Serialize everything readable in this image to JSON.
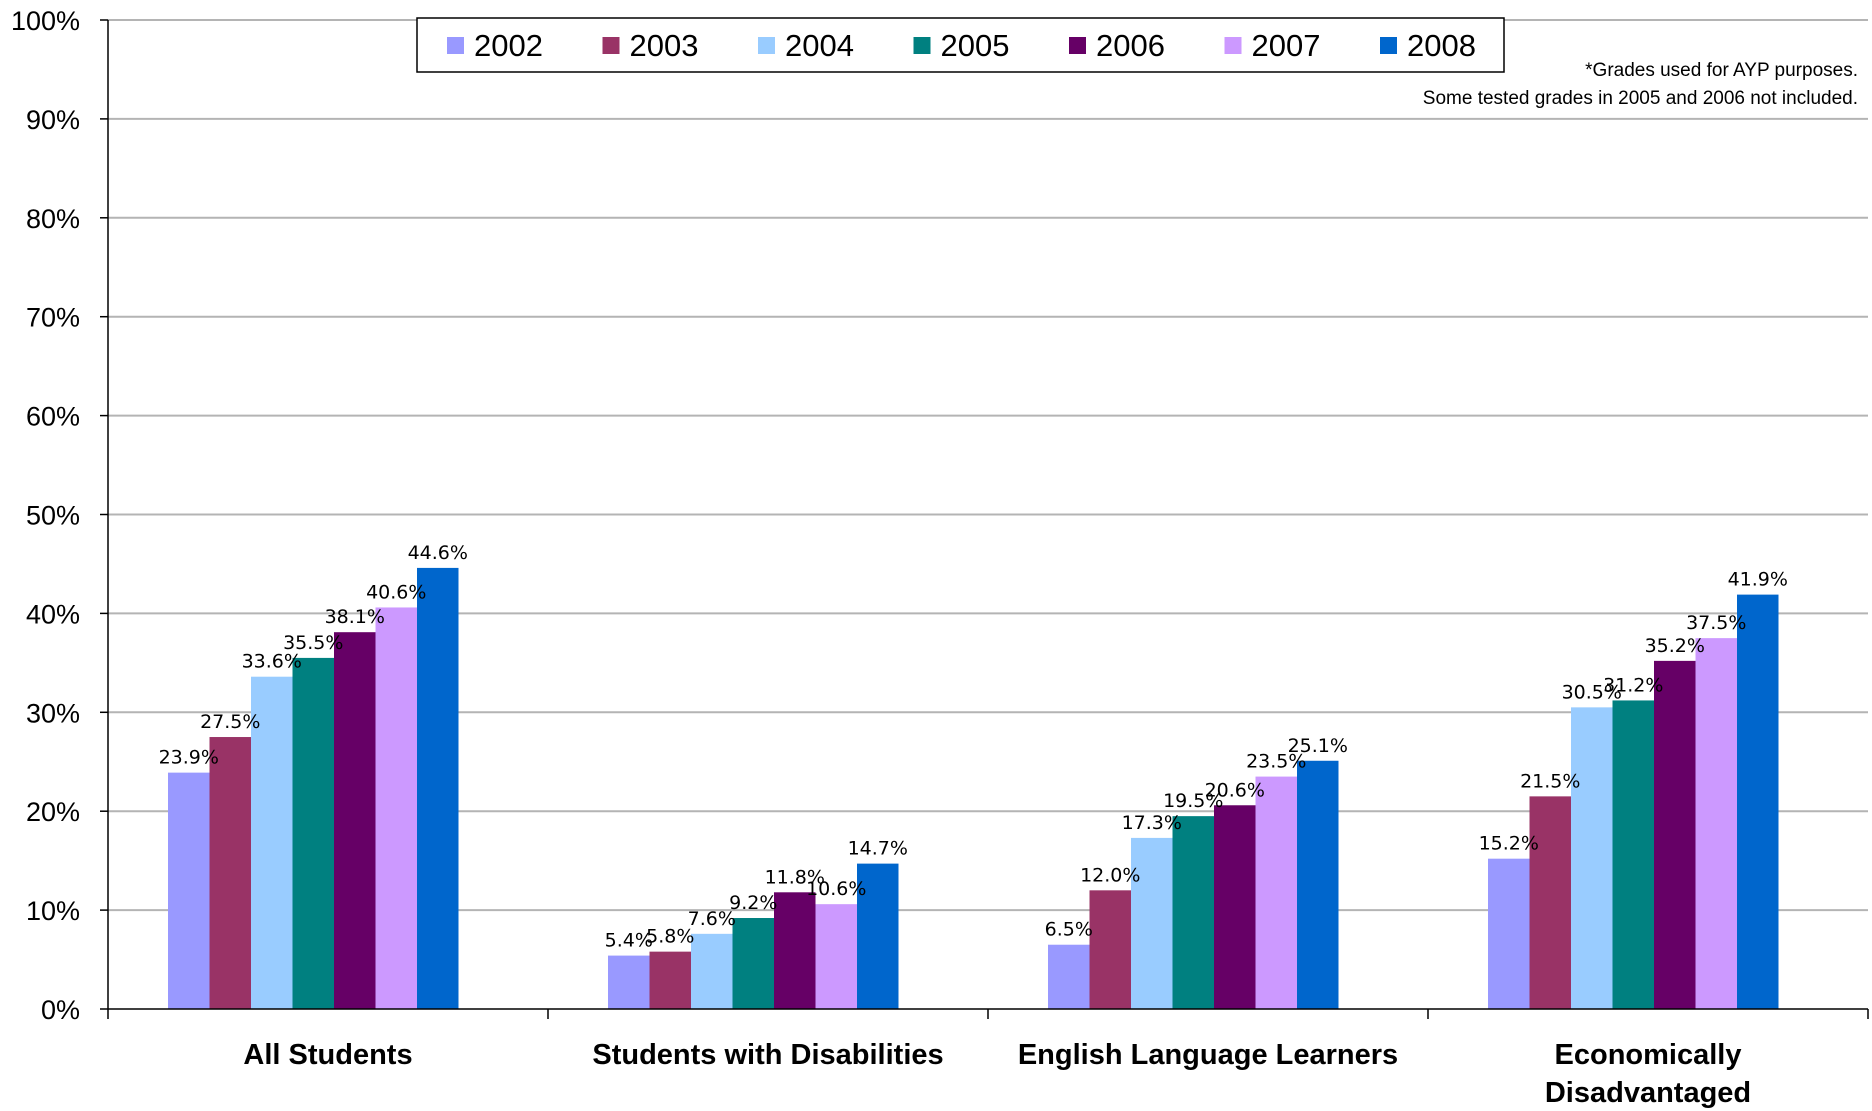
{
  "chart_data": {
    "type": "bar",
    "title": "",
    "xlabel": "",
    "ylabel": "",
    "ylim": [
      0,
      100
    ],
    "y_ticks": [
      "0%",
      "10%",
      "20%",
      "30%",
      "40%",
      "50%",
      "60%",
      "70%",
      "80%",
      "90%",
      "100%"
    ],
    "y_tick_values": [
      0,
      10,
      20,
      30,
      40,
      50,
      60,
      70,
      80,
      90,
      100
    ],
    "grid": true,
    "legend_position": "top-center",
    "categories": [
      [
        "All Students"
      ],
      [
        "Students with Disabilities"
      ],
      [
        "English Language Learners"
      ],
      [
        "Economically",
        "Disadvantaged"
      ]
    ],
    "series": [
      {
        "name": "2002",
        "color": "#9999ff",
        "values": [
          23.9,
          5.4,
          6.5,
          15.2
        ],
        "labels": [
          "23.9%",
          "5.4%",
          "6.5%",
          "15.2%"
        ]
      },
      {
        "name": "2003",
        "color": "#993366",
        "values": [
          27.5,
          5.8,
          12.0,
          21.5
        ],
        "labels": [
          "27.5%",
          "5.8%",
          "12.0%",
          "21.5%"
        ]
      },
      {
        "name": "2004",
        "color": "#99ccff",
        "values": [
          33.6,
          7.6,
          17.3,
          30.5
        ],
        "labels": [
          "33.6%",
          "7.6%",
          "17.3%",
          "30.5%"
        ]
      },
      {
        "name": "2005",
        "color": "#008080",
        "values": [
          35.5,
          9.2,
          19.5,
          31.2
        ],
        "labels": [
          "35.5%",
          "9.2%",
          "19.5%",
          "31.2%"
        ]
      },
      {
        "name": "2006",
        "color": "#660066",
        "values": [
          38.1,
          11.8,
          20.6,
          35.2
        ],
        "labels": [
          "38.1%",
          "11.8%",
          "20.6%",
          "35.2%"
        ]
      },
      {
        "name": "2007",
        "color": "#cc99ff",
        "values": [
          40.6,
          10.6,
          23.5,
          37.5
        ],
        "labels": [
          "40.6%",
          "10.6%",
          "23.5%",
          "37.5%"
        ]
      },
      {
        "name": "2008",
        "color": "#0066cc",
        "values": [
          44.6,
          14.7,
          25.1,
          41.9
        ],
        "labels": [
          "44.6%",
          "14.7%",
          "25.1%",
          "41.9%"
        ]
      }
    ],
    "annotations": [
      "*Grades used for AYP purposes.",
      "Some tested grades in 2005 and 2006 not included."
    ]
  }
}
